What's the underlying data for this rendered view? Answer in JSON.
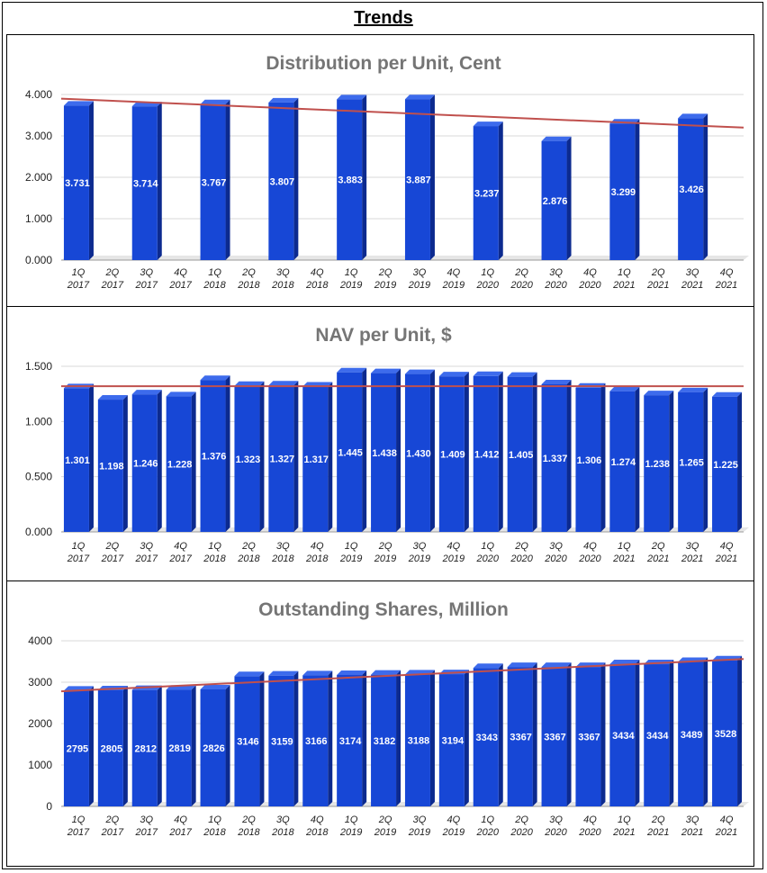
{
  "page": {
    "title": "Trends"
  },
  "colors": {
    "bar_front": "#1747d6",
    "bar_side": "#0c2a8f",
    "bar_top": "#3d6bec",
    "trend": "#c0504d",
    "grid": "#d9d9d9",
    "axis": "#999999"
  },
  "chart_data": [
    {
      "type": "bar",
      "title": "Distribution per Unit, Cent",
      "categories": [
        "1Q 2017",
        "2Q 2017",
        "3Q 2017",
        "4Q 2017",
        "1Q 2018",
        "2Q 2018",
        "3Q 2018",
        "4Q 2018",
        "1Q 2019",
        "2Q 2019",
        "3Q 2019",
        "4Q 2019",
        "1Q 2020",
        "2Q 2020",
        "3Q 2020",
        "4Q 2020",
        "1Q 2021",
        "2Q 2021",
        "3Q 2021",
        "4Q 2021"
      ],
      "values": [
        3.731,
        null,
        3.714,
        null,
        3.767,
        null,
        3.807,
        null,
        3.883,
        null,
        3.887,
        null,
        3.237,
        null,
        2.876,
        null,
        3.299,
        null,
        3.426,
        null
      ],
      "labels": [
        "3.731",
        null,
        "3.714",
        null,
        "3.767",
        null,
        "3.807",
        null,
        "3.883",
        null,
        "3.887",
        null,
        "3.237",
        null,
        "2.876",
        null,
        "3.299",
        null,
        "3.426",
        null
      ],
      "yticks": [
        "0.000",
        "1.000",
        "2.000",
        "3.000",
        "4.000"
      ],
      "ylim": [
        0,
        4
      ],
      "trendline": [
        3.9,
        3.2
      ],
      "xlabel": "",
      "ylabel": ""
    },
    {
      "type": "bar",
      "title": "NAV per Unit, $",
      "categories": [
        "1Q 2017",
        "2Q 2017",
        "3Q 2017",
        "4Q 2017",
        "1Q 2018",
        "2Q 2018",
        "3Q 2018",
        "4Q 2018",
        "1Q 2019",
        "2Q 2019",
        "3Q 2019",
        "4Q 2019",
        "1Q 2020",
        "2Q 2020",
        "3Q 2020",
        "4Q 2020",
        "1Q 2021",
        "2Q 2021",
        "3Q 2021",
        "4Q 2021"
      ],
      "values": [
        1.301,
        1.198,
        1.246,
        1.228,
        1.376,
        1.323,
        1.327,
        1.317,
        1.445,
        1.438,
        1.43,
        1.409,
        1.412,
        1.405,
        1.337,
        1.306,
        1.274,
        1.238,
        1.265,
        1.225
      ],
      "labels": [
        "1.301",
        "1.198",
        "1.246",
        "1.228",
        "1.376",
        "1.323",
        "1.327",
        "1.317",
        "1.445",
        "1.438",
        "1.430",
        "1.409",
        "1.412",
        "1.405",
        "1.337",
        "1.306",
        "1.274",
        "1.238",
        "1.265",
        "1.225"
      ],
      "yticks": [
        "0.000",
        "0.500",
        "1.000",
        "1.500"
      ],
      "ylim": [
        0,
        1.5
      ],
      "trendline": [
        1.32,
        1.32
      ],
      "xlabel": "",
      "ylabel": ""
    },
    {
      "type": "bar",
      "title": "Outstanding Shares, Million",
      "categories": [
        "1Q 2017",
        "2Q 2017",
        "3Q 2017",
        "4Q 2017",
        "1Q 2018",
        "2Q 2018",
        "3Q 2018",
        "4Q 2018",
        "1Q 2019",
        "2Q 2019",
        "3Q 2019",
        "4Q 2019",
        "1Q 2020",
        "2Q 2020",
        "3Q 2020",
        "4Q 2020",
        "1Q 2021",
        "2Q 2021",
        "3Q 2021",
        "4Q 2021"
      ],
      "values": [
        2795,
        2805,
        2812,
        2819,
        2826,
        3146,
        3159,
        3166,
        3174,
        3182,
        3188,
        3194,
        3343,
        3367,
        3367,
        3367,
        3434,
        3434,
        3489,
        3528
      ],
      "labels": [
        "2795",
        "2805",
        "2812",
        "2819",
        "2826",
        "3146",
        "3159",
        "3166",
        "3174",
        "3182",
        "3188",
        "3194",
        "3343",
        "3367",
        "3367",
        "3367",
        "3434",
        "3434",
        "3489",
        "3528"
      ],
      "yticks": [
        "0",
        "1000",
        "2000",
        "3000",
        "4000"
      ],
      "ylim": [
        0,
        4000
      ],
      "trendline": [
        2780,
        3560
      ],
      "xlabel": "",
      "ylabel": ""
    }
  ]
}
